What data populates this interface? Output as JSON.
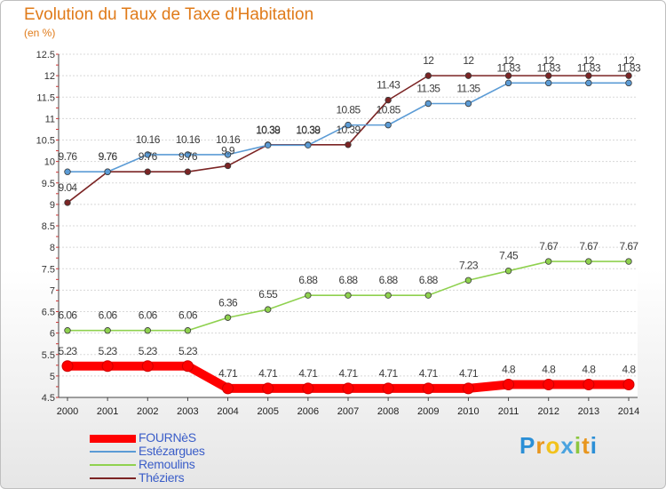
{
  "header": {
    "title": "Evolution du Taux de Taxe d'Habitation",
    "subtitle": "(en %)"
  },
  "brand": {
    "text": "Proxiti"
  },
  "chart_data": {
    "type": "line",
    "title": "Evolution du Taux de Taxe d'Habitation",
    "ylabel": "(en %)",
    "xlabel": "",
    "ylim": [
      4.5,
      12.5
    ],
    "yticks": [
      "4.5",
      "5",
      "5.5",
      "6",
      "6.5",
      "7",
      "7.5",
      "8",
      "8.5",
      "9",
      "9.5",
      "10",
      "10.5",
      "11",
      "11.5",
      "12",
      "12.5"
    ],
    "categories": [
      "2000",
      "2001",
      "2002",
      "2003",
      "2004",
      "2005",
      "2006",
      "2007",
      "2008",
      "2009",
      "2010",
      "2011",
      "2012",
      "2013",
      "2014"
    ],
    "grid": "horizontal",
    "legend_position": "bottom-left",
    "series": [
      {
        "name": "FOURNèS",
        "color": "#ff0000",
        "values": [
          5.23,
          5.23,
          5.23,
          5.23,
          4.71,
          4.71,
          4.71,
          4.71,
          4.71,
          4.71,
          4.71,
          4.8,
          4.8,
          4.8,
          4.8
        ],
        "labels": [
          "5.23",
          "5.23",
          "5.23",
          "5.23",
          "4.71",
          "4.71",
          "4.71",
          "4.71",
          "4.71",
          "4.71",
          "4.71",
          "4.8",
          "4.8",
          "4.8",
          "4.8"
        ]
      },
      {
        "name": "Estézargues",
        "color": "#5b9bd5",
        "values": [
          9.76,
          9.76,
          10.16,
          10.16,
          10.16,
          10.38,
          10.38,
          10.85,
          10.85,
          11.35,
          11.35,
          11.83,
          11.83,
          11.83,
          11.83
        ],
        "labels": [
          "9.76",
          "9.76",
          "10.16",
          "10.16",
          "10.16",
          "10.38",
          "10.38",
          "10.85",
          "10.85",
          "11.35",
          "11.35",
          "11.83",
          "11.83",
          "11.83",
          "11.83"
        ]
      },
      {
        "name": "Remoulins",
        "color": "#8fd14f",
        "values": [
          6.06,
          6.06,
          6.06,
          6.06,
          6.36,
          6.55,
          6.88,
          6.88,
          6.88,
          6.88,
          7.23,
          7.45,
          7.67,
          7.67,
          7.67
        ],
        "labels": [
          "6.06",
          "6.06",
          "6.06",
          "6.06",
          "6.36",
          "6.55",
          "6.88",
          "6.88",
          "6.88",
          "6.88",
          "7.23",
          "7.45",
          "7.67",
          "7.67",
          "7.67"
        ]
      },
      {
        "name": "Théziers",
        "color": "#7b2424",
        "values": [
          9.04,
          9.76,
          9.76,
          9.76,
          9.9,
          10.39,
          10.39,
          10.39,
          11.43,
          12,
          12,
          12,
          12,
          12,
          12
        ],
        "labels": [
          "9.04",
          "9.76",
          "9.76",
          "9.76",
          "9.9",
          "10.39",
          "10.39",
          "10.39",
          "11.43",
          "12",
          "12",
          "12",
          "12",
          "12",
          "12"
        ]
      }
    ]
  }
}
